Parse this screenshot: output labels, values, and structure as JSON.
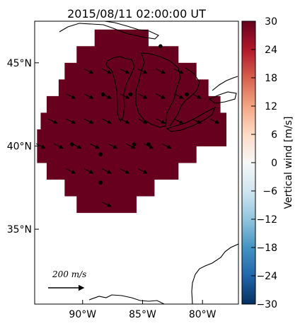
{
  "chart_data": {
    "type": "heatmap",
    "title": "2015/08/11 02:00:00 UT",
    "x_ticks": [
      {
        "lon": -90,
        "label": "90°W"
      },
      {
        "lon": -85,
        "label": "85°W"
      },
      {
        "lon": -80,
        "label": "80°W"
      }
    ],
    "y_ticks": [
      {
        "lat": 45,
        "label": "45°N"
      },
      {
        "lat": 40,
        "label": "40°N"
      },
      {
        "lat": 35,
        "label": "35°N"
      }
    ],
    "xlim": [
      -94,
      -77
    ],
    "ylim": [
      30.5,
      47.5
    ],
    "colorbar": {
      "label": "Vertical wind [m/s]",
      "range": [
        -30,
        30
      ],
      "ticks": [
        30,
        24,
        18,
        12,
        6,
        0,
        -6,
        -12,
        -18,
        -24,
        -30
      ],
      "tick_labels": [
        "30",
        "24",
        "18",
        "12",
        "6",
        "0",
        "−6",
        "−12",
        "−18",
        "−24",
        "−30"
      ],
      "colormap": "RdBu_r"
    },
    "field_value": 30,
    "field_color": "#67001f",
    "region_rows": [
      {
        "lat": 46.5,
        "lon": [
          -89,
          -84.5
        ]
      },
      {
        "lat": 45.5,
        "lon": [
          -90.5,
          -82
        ]
      },
      {
        "lat": 44.5,
        "lon": [
          -91.5,
          -80.5
        ]
      },
      {
        "lat": 43.5,
        "lon": [
          -92,
          -79.5
        ]
      },
      {
        "lat": 42.5,
        "lon": [
          -93,
          -78.5
        ]
      },
      {
        "lat": 41.5,
        "lon": [
          -93.5,
          -78
        ]
      },
      {
        "lat": 40.5,
        "lon": [
          -93.8,
          -78
        ]
      },
      {
        "lat": 39.5,
        "lon": [
          -93.8,
          -80.5
        ]
      },
      {
        "lat": 38.5,
        "lon": [
          -93,
          -82
        ]
      },
      {
        "lat": 37.5,
        "lon": [
          -91.5,
          -84
        ]
      },
      {
        "lat": 36.5,
        "lon": [
          -90.5,
          -85.5
        ]
      }
    ],
    "wind_vectors": [
      {
        "lon": -89.5,
        "lat": 44.5
      },
      {
        "lon": -88,
        "lat": 44.5
      },
      {
        "lon": -86.5,
        "lat": 44.5
      },
      {
        "lon": -85,
        "lat": 44.5
      },
      {
        "lon": -83.5,
        "lat": 44.5
      },
      {
        "lon": -82,
        "lat": 44.5
      },
      {
        "lon": -91,
        "lat": 43
      },
      {
        "lon": -89.5,
        "lat": 43
      },
      {
        "lon": -88,
        "lat": 43
      },
      {
        "lon": -86.5,
        "lat": 43
      },
      {
        "lon": -85,
        "lat": 43
      },
      {
        "lon": -83.5,
        "lat": 43
      },
      {
        "lon": -82,
        "lat": 43
      },
      {
        "lon": -80.5,
        "lat": 43
      },
      {
        "lon": -92.5,
        "lat": 41.5
      },
      {
        "lon": -91,
        "lat": 41.5
      },
      {
        "lon": -89.5,
        "lat": 41.5
      },
      {
        "lon": -88,
        "lat": 41.5
      },
      {
        "lon": -86.5,
        "lat": 41.5
      },
      {
        "lon": -85,
        "lat": 41.5
      },
      {
        "lon": -83.5,
        "lat": 41.5
      },
      {
        "lon": -82,
        "lat": 41.5
      },
      {
        "lon": -80.5,
        "lat": 41.5
      },
      {
        "lon": -79,
        "lat": 41.5
      },
      {
        "lon": -93.5,
        "lat": 40
      },
      {
        "lon": -92,
        "lat": 40
      },
      {
        "lon": -90.5,
        "lat": 40
      },
      {
        "lon": -89,
        "lat": 40
      },
      {
        "lon": -87.5,
        "lat": 40
      },
      {
        "lon": -86,
        "lat": 40
      },
      {
        "lon": -84.5,
        "lat": 40
      },
      {
        "lon": -83,
        "lat": 40
      },
      {
        "lon": -91,
        "lat": 38.5
      },
      {
        "lon": -89.5,
        "lat": 38.5
      },
      {
        "lon": -88,
        "lat": 38.5
      },
      {
        "lon": -86.5,
        "lat": 38.5
      },
      {
        "lon": -85,
        "lat": 38.5
      },
      {
        "lon": -88,
        "lat": 36.5
      }
    ],
    "wind_direction": [
      0.9,
      -0.45
    ],
    "site_markers": [
      {
        "lon": -83.5,
        "lat": 46
      },
      {
        "lon": -88.3,
        "lat": 43.1
      },
      {
        "lon": -86,
        "lat": 43.1
      },
      {
        "lon": -81.3,
        "lat": 43.1
      },
      {
        "lon": -90.9,
        "lat": 40.1
      },
      {
        "lon": -85.7,
        "lat": 40.1
      },
      {
        "lon": -84.5,
        "lat": 40.1
      },
      {
        "lon": -88.5,
        "lat": 39.5
      },
      {
        "lon": -88.5,
        "lat": 37.8
      }
    ],
    "reference_vector": {
      "label": "200 m/s",
      "magnitude": 200
    }
  }
}
